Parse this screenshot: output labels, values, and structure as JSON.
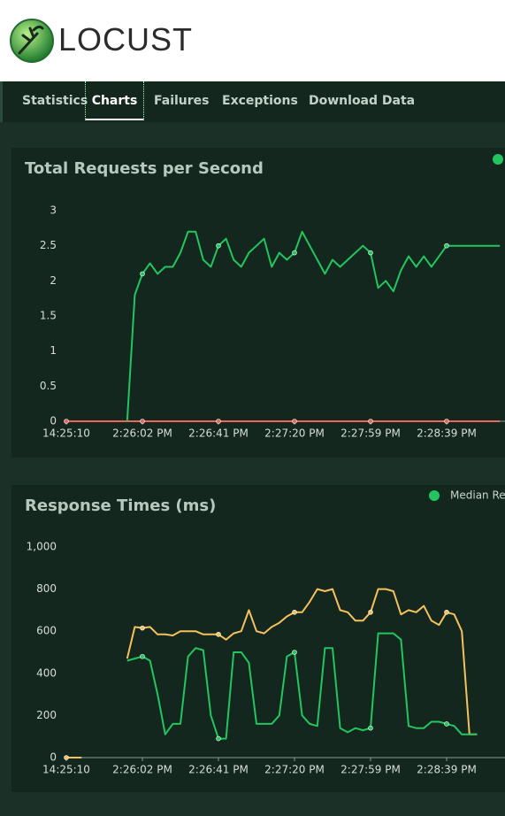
{
  "header": {
    "brand": "LOCUST"
  },
  "tabs": [
    "Statistics",
    "Charts",
    "Failures",
    "Exceptions",
    "Download Data"
  ],
  "chart_data": [
    {
      "type": "line",
      "title": "Total Requests per Second",
      "categories": [
        "14:25:10",
        null,
        null,
        null,
        null,
        null,
        null,
        null,
        null,
        null,
        "2:26:02 PM",
        null,
        null,
        null,
        null,
        null,
        null,
        null,
        null,
        null,
        "2:26:41 PM",
        null,
        null,
        null,
        null,
        null,
        null,
        null,
        null,
        null,
        "2:27:20 PM",
        null,
        null,
        null,
        null,
        null,
        null,
        null,
        null,
        null,
        "2:27:59 PM",
        null,
        null,
        null,
        null,
        null,
        null,
        null,
        null,
        null,
        "2:28:39 PM",
        null,
        null,
        null,
        null,
        null,
        null,
        null
      ],
      "series": [
        {
          "color": "#22c55e",
          "values": [
            null,
            null,
            null,
            null,
            null,
            null,
            null,
            null,
            0,
            1.8,
            2.1,
            2.25,
            2.1,
            2.2,
            2.2,
            2.4,
            2.7,
            2.7,
            2.3,
            2.2,
            2.5,
            2.6,
            2.3,
            2.2,
            2.4,
            2.5,
            2.6,
            2.2,
            2.4,
            2.3,
            2.4,
            2.7,
            2.5,
            2.3,
            2.1,
            2.3,
            2.2,
            2.3,
            2.4,
            2.5,
            2.4,
            1.9,
            2.0,
            1.85,
            2.15,
            2.35,
            2.2,
            2.35,
            2.2,
            2.35,
            2.5,
            2.5,
            2.5,
            2.5,
            2.5,
            2.5,
            2.5,
            2.5
          ]
        },
        {
          "color": "#e8685a",
          "values": [
            0,
            0,
            0,
            0,
            0,
            0,
            0,
            0,
            0,
            0,
            0,
            0,
            0,
            0,
            0,
            0,
            0,
            0,
            0,
            0,
            0,
            0,
            0,
            0,
            0,
            0,
            0,
            0,
            0,
            0,
            0,
            0,
            0,
            0,
            0,
            0,
            0,
            0,
            0,
            0,
            0,
            0,
            0,
            0,
            0,
            0,
            0,
            0,
            0,
            0,
            0,
            0,
            0,
            0,
            0,
            0,
            0,
            0
          ]
        }
      ],
      "ylim": [
        0,
        3
      ],
      "yticks": [
        0,
        0.5,
        1,
        1.5,
        2,
        2.5,
        3
      ]
    },
    {
      "type": "line",
      "title": "Response Times (ms)",
      "categories": [
        "14:25:10",
        null,
        null,
        null,
        null,
        null,
        null,
        null,
        null,
        null,
        "2:26:02 PM",
        null,
        null,
        null,
        null,
        null,
        null,
        null,
        null,
        null,
        "2:26:41 PM",
        null,
        null,
        null,
        null,
        null,
        null,
        null,
        null,
        null,
        "2:27:20 PM",
        null,
        null,
        null,
        null,
        null,
        null,
        null,
        null,
        null,
        "2:27:59 PM",
        null,
        null,
        null,
        null,
        null,
        null,
        null,
        null,
        null,
        "2:28:39 PM",
        null,
        null,
        null,
        null,
        null,
        null,
        null
      ],
      "series": [
        {
          "name": "Median Re",
          "color": "#22c55e",
          "values": [
            null,
            null,
            null,
            null,
            null,
            null,
            null,
            null,
            460,
            470,
            480,
            460,
            300,
            110,
            160,
            160,
            480,
            520,
            510,
            200,
            90,
            90,
            500,
            500,
            450,
            160,
            160,
            160,
            200,
            480,
            500,
            200,
            160,
            150,
            520,
            520,
            140,
            120,
            140,
            130,
            140,
            590,
            590,
            590,
            560,
            150,
            140,
            140,
            170,
            170,
            160,
            150,
            110,
            110,
            110,
            null,
            null,
            null
          ]
        },
        {
          "color": "#f5c15c",
          "values": [
            0,
            0,
            0,
            null,
            null,
            null,
            null,
            null,
            470,
            620,
            615,
            620,
            585,
            585,
            580,
            600,
            600,
            600,
            585,
            585,
            585,
            560,
            590,
            600,
            700,
            600,
            590,
            620,
            640,
            670,
            690,
            690,
            740,
            800,
            790,
            800,
            700,
            690,
            650,
            650,
            690,
            800,
            800,
            790,
            680,
            700,
            690,
            720,
            650,
            630,
            690,
            680,
            600,
            110,
            110,
            null,
            null,
            null
          ]
        }
      ],
      "ylim": [
        0,
        1000
      ],
      "yticks": [
        0,
        200,
        400,
        600,
        800,
        {
          "value": 1000,
          "label": "1,000"
        }
      ],
      "legend": "top-right"
    }
  ]
}
